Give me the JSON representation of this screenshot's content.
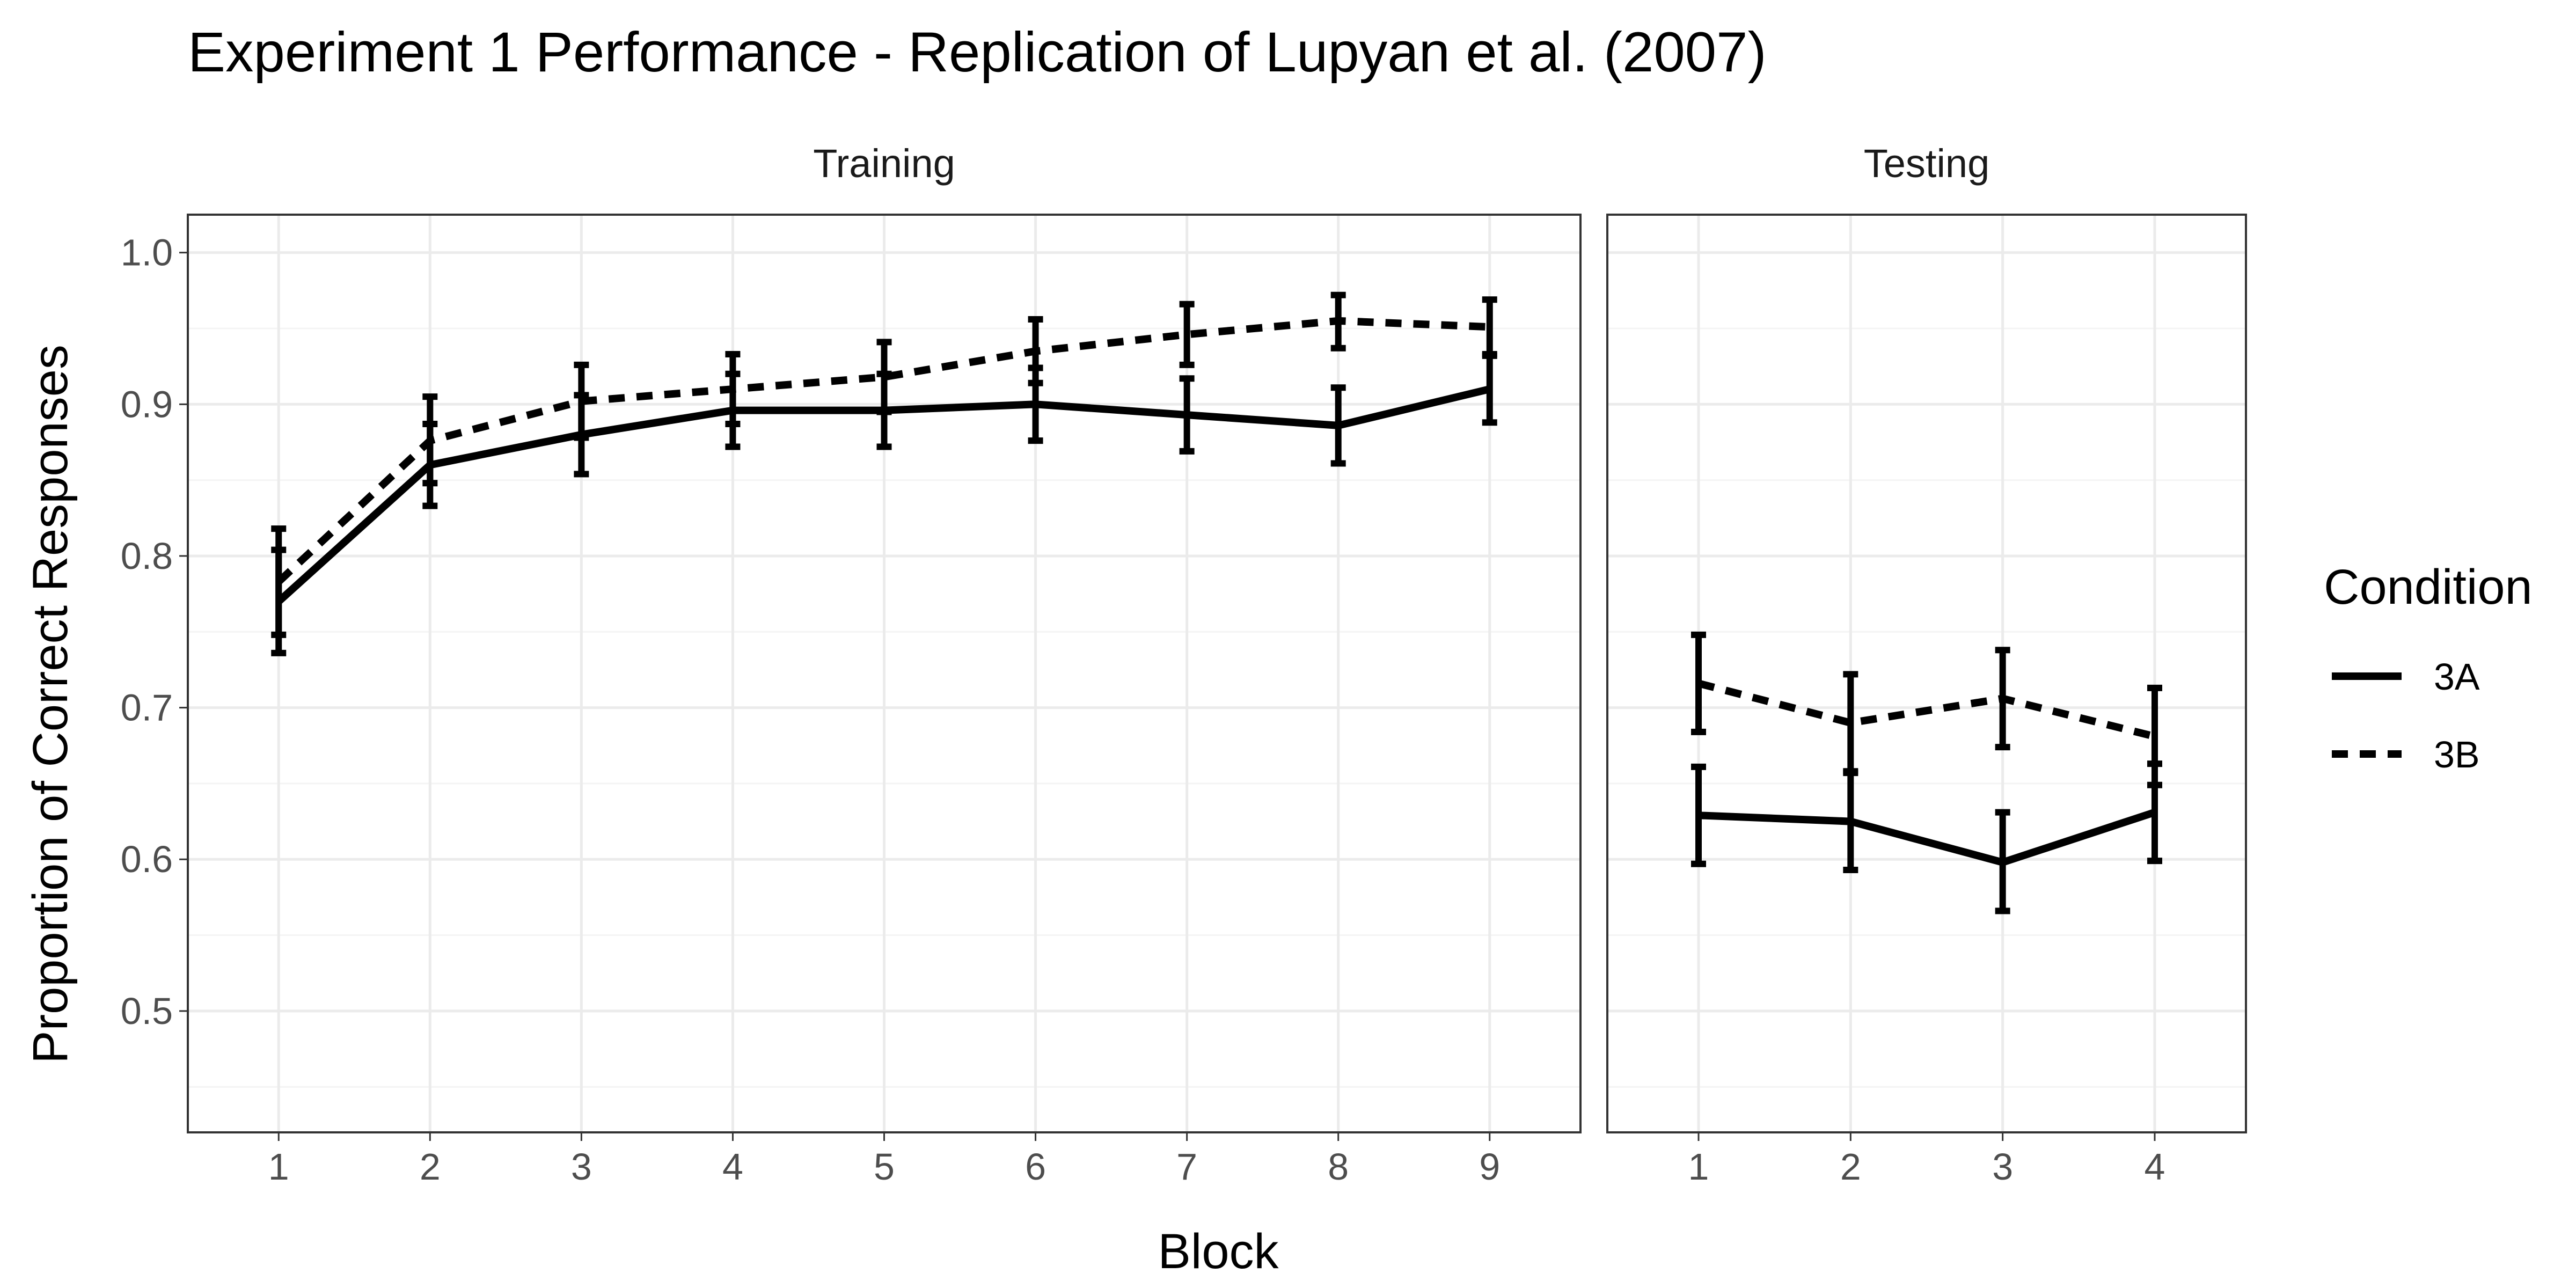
{
  "chart_data": {
    "type": "line",
    "title": "Experiment 1 Performance - Replication of Lupyan et al. (2007)",
    "xlabel": "Block",
    "ylabel": "Proportion of Correct Responses",
    "ylim": [
      0.42,
      1.025
    ],
    "yticks": [
      "0.5",
      "0.6",
      "0.7",
      "0.8",
      "0.9",
      "1.0"
    ],
    "grid": true,
    "legend": {
      "title": "Condition",
      "placement": "right",
      "entries": [
        {
          "label": "3A",
          "linetype": "solid"
        },
        {
          "label": "3B",
          "linetype": "dashed"
        }
      ]
    },
    "panels": [
      {
        "name": "Training",
        "x": [
          1,
          2,
          3,
          4,
          5,
          6,
          7,
          8,
          9
        ],
        "xticks": [
          "1",
          "2",
          "3",
          "4",
          "5",
          "6",
          "7",
          "8",
          "9"
        ],
        "series": [
          {
            "name": "3A",
            "values": [
              0.77,
              0.86,
              0.88,
              0.896,
              0.896,
              0.9,
              0.893,
              0.886,
              0.91
            ],
            "lower": [
              0.736,
              0.833,
              0.854,
              0.872,
              0.872,
              0.876,
              0.869,
              0.861,
              0.888
            ],
            "upper": [
              0.804,
              0.887,
              0.906,
              0.92,
              0.92,
              0.924,
              0.917,
              0.911,
              0.932
            ]
          },
          {
            "name": "3B",
            "values": [
              0.783,
              0.876,
              0.902,
              0.91,
              0.918,
              0.935,
              0.946,
              0.955,
              0.951
            ],
            "lower": [
              0.748,
              0.848,
              0.878,
              0.887,
              0.895,
              0.914,
              0.926,
              0.937,
              0.933
            ],
            "upper": [
              0.818,
              0.905,
              0.926,
              0.933,
              0.941,
              0.956,
              0.966,
              0.972,
              0.969
            ]
          }
        ]
      },
      {
        "name": "Testing",
        "x": [
          1,
          2,
          3,
          4
        ],
        "xticks": [
          "1",
          "2",
          "3",
          "4"
        ],
        "series": [
          {
            "name": "3A",
            "values": [
              0.629,
              0.625,
              0.598,
              0.631
            ],
            "lower": [
              0.597,
              0.593,
              0.566,
              0.599
            ],
            "upper": [
              0.661,
              0.657,
              0.631,
              0.663
            ]
          },
          {
            "name": "3B",
            "values": [
              0.716,
              0.69,
              0.706,
              0.681
            ],
            "lower": [
              0.684,
              0.658,
              0.674,
              0.649
            ],
            "upper": [
              0.748,
              0.722,
              0.738,
              0.713
            ]
          }
        ]
      }
    ],
    "colors": {
      "line": "#000000",
      "panel_border": "#333333",
      "grid_major": "#ebebeb",
      "grid_minor": "#f4f4f4",
      "background": "#ffffff"
    }
  }
}
